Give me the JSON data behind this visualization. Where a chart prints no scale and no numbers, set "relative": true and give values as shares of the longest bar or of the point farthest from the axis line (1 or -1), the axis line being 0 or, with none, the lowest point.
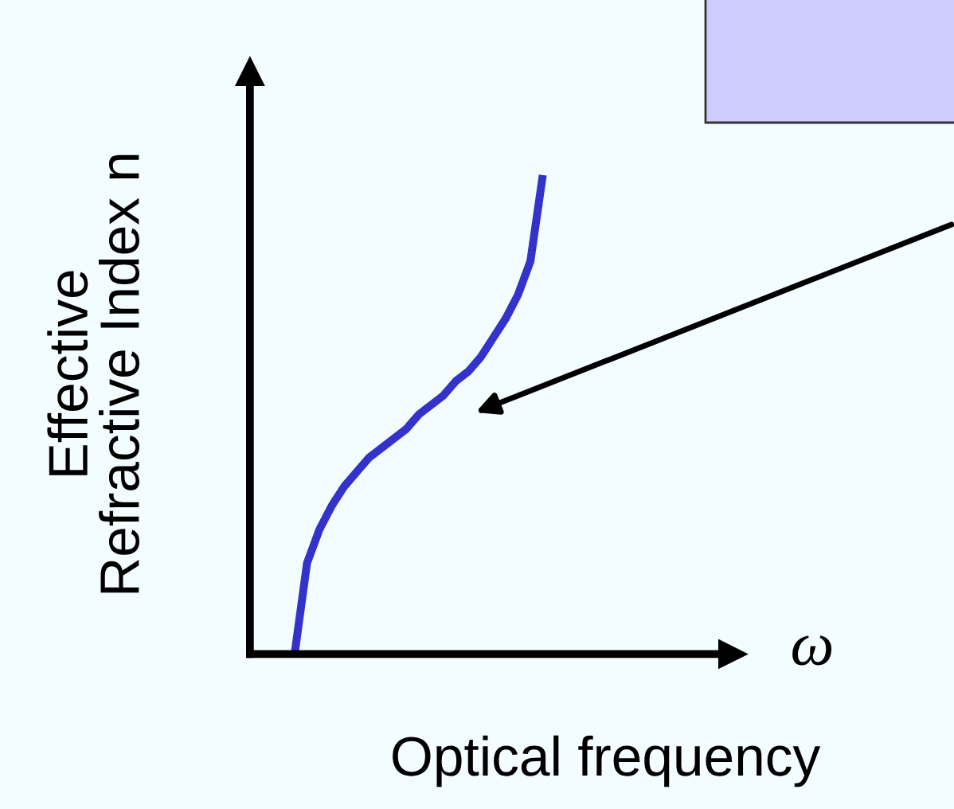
{
  "chart_data": {
    "type": "line",
    "relative": true,
    "categories": [
      null,
      null,
      null,
      null,
      null,
      null,
      null,
      null,
      null,
      null,
      null,
      null,
      null,
      null,
      null,
      null,
      null,
      null,
      null,
      null,
      null
    ],
    "series": [
      {
        "color": "#3333cc",
        "values": [
          0,
          0.19,
          0.26,
          0.31,
          0.35,
          0.38,
          0.41,
          0.43,
          0.45,
          0.47,
          0.5,
          0.52,
          0.54,
          0.57,
          0.59,
          0.62,
          0.66,
          0.7,
          0.75,
          0.82,
          1
        ]
      }
    ],
    "xlabel": "Optical frequency",
    "ylabel": "Effective\nRefractive Index n",
    "annotations": [
      "ω"
    ]
  }
}
